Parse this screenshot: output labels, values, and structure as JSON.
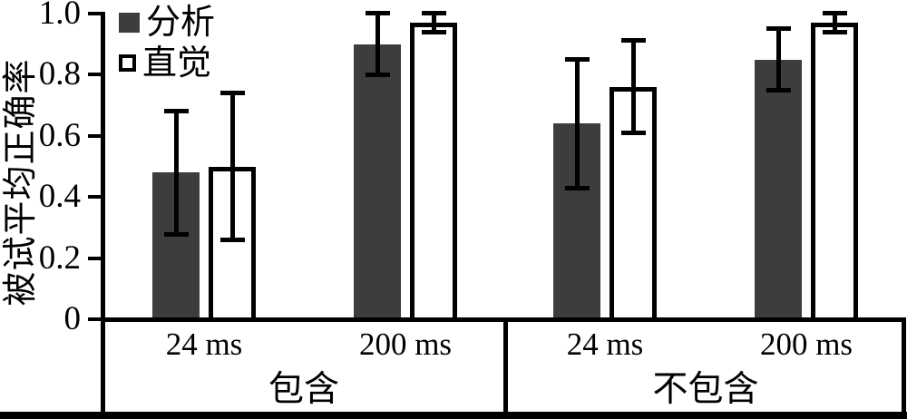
{
  "chart_data": {
    "type": "bar",
    "title": "",
    "xlabel": "",
    "ylabel": "被试平均正确率",
    "ylim": [
      0,
      1.0
    ],
    "yticks": [
      0,
      0.2,
      0.4,
      0.6,
      0.8,
      1.0
    ],
    "ytick_labels": [
      "0",
      "0.2",
      "0.4",
      "0.6",
      "0.8",
      "1.0"
    ],
    "grid": false,
    "legend_position": "top-left",
    "groups": [
      {
        "label": "包含",
        "categories": [
          "24 ms",
          "200 ms"
        ]
      },
      {
        "label": "不包含",
        "categories": [
          "24 ms",
          "200 ms"
        ]
      }
    ],
    "series": [
      {
        "name": "分析",
        "style": "filled",
        "color": "#3d3d40",
        "values": [
          0.48,
          0.9,
          0.64,
          0.85
        ],
        "errors_low": [
          0.28,
          0.8,
          0.43,
          0.75
        ],
        "errors_high": [
          0.68,
          1.0,
          0.85,
          0.95
        ]
      },
      {
        "name": "直觉",
        "style": "open",
        "color": "#ffffff",
        "values": [
          0.5,
          0.97,
          0.76,
          0.97
        ],
        "errors_low": [
          0.26,
          0.94,
          0.61,
          0.94
        ],
        "errors_high": [
          0.74,
          1.0,
          0.91,
          1.0
        ]
      }
    ]
  },
  "colors": {
    "bar_fill_dark": "#3d3d40",
    "bar_fill_open": "#ffffff",
    "line": "#000000",
    "background": "#ffffff"
  }
}
